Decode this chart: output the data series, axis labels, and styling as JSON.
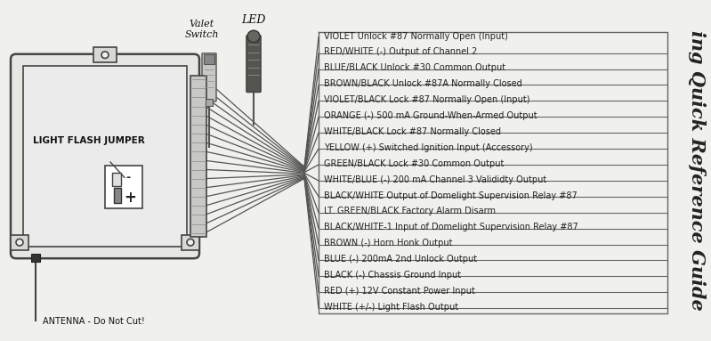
{
  "title": "ing Quick Reference Guide",
  "background_color": "#f0f0ec",
  "wire_labels": [
    "VIOLET Unlock #87 Normally Open (Input)",
    "RED/WHITE (-) Output of Channel 2",
    "BLUE/BLACK Unlock #30 Common Output",
    "BROWN/BLACK Unlock #87A Normally Closed",
    "VIOLET/BLACK Lock #87 Normally Open (Input)",
    "ORANGE (-) 500 mA Ground-When-Armed Output",
    "WHITE/BLACK Lock #87 Normally Closed",
    "YELLOW (+) Switched Ignition Input (Accessory)",
    "GREEN/BLACK Lock #30 Common Output",
    "WHITE/BLUE (-) 200 mA Channel 3 Valididty Output",
    "BLACK/WHITE Output of Domelight Supervision Relay #87",
    "LT. GREEN/BLACK Factory Alarm Disarm",
    "BLACK/WHITE-1 Input of Domelight Supervision Relay #87",
    "BROWN (-) Horn Honk Output",
    "BLUE (-) 200mA 2nd Unlock Output",
    "BLACK (-) Chassis Ground Input",
    "RED (+) 12V Constant Power Input",
    "WHITE (+/-) Light Flash Output"
  ],
  "wire_colors_draw": [
    "#888888",
    "#888888",
    "#888888",
    "#888888",
    "#888888",
    "#888888",
    "#888888",
    "#888888",
    "#888888",
    "#888888",
    "#888888",
    "#888888",
    "#888888",
    "#888888",
    "#888888",
    "#888888",
    "#888888",
    "#888888"
  ],
  "box_edge_color": "#444444",
  "valet_switch_label": "Valet\nSwitch",
  "led_label": "LED",
  "jumper_label": "LIGHT FLASH JUMPER",
  "antenna_label": "ANTENNA - Do Not Cut!",
  "table_line_color": "#666666",
  "title_color": "#222222",
  "label_color": "#222222"
}
